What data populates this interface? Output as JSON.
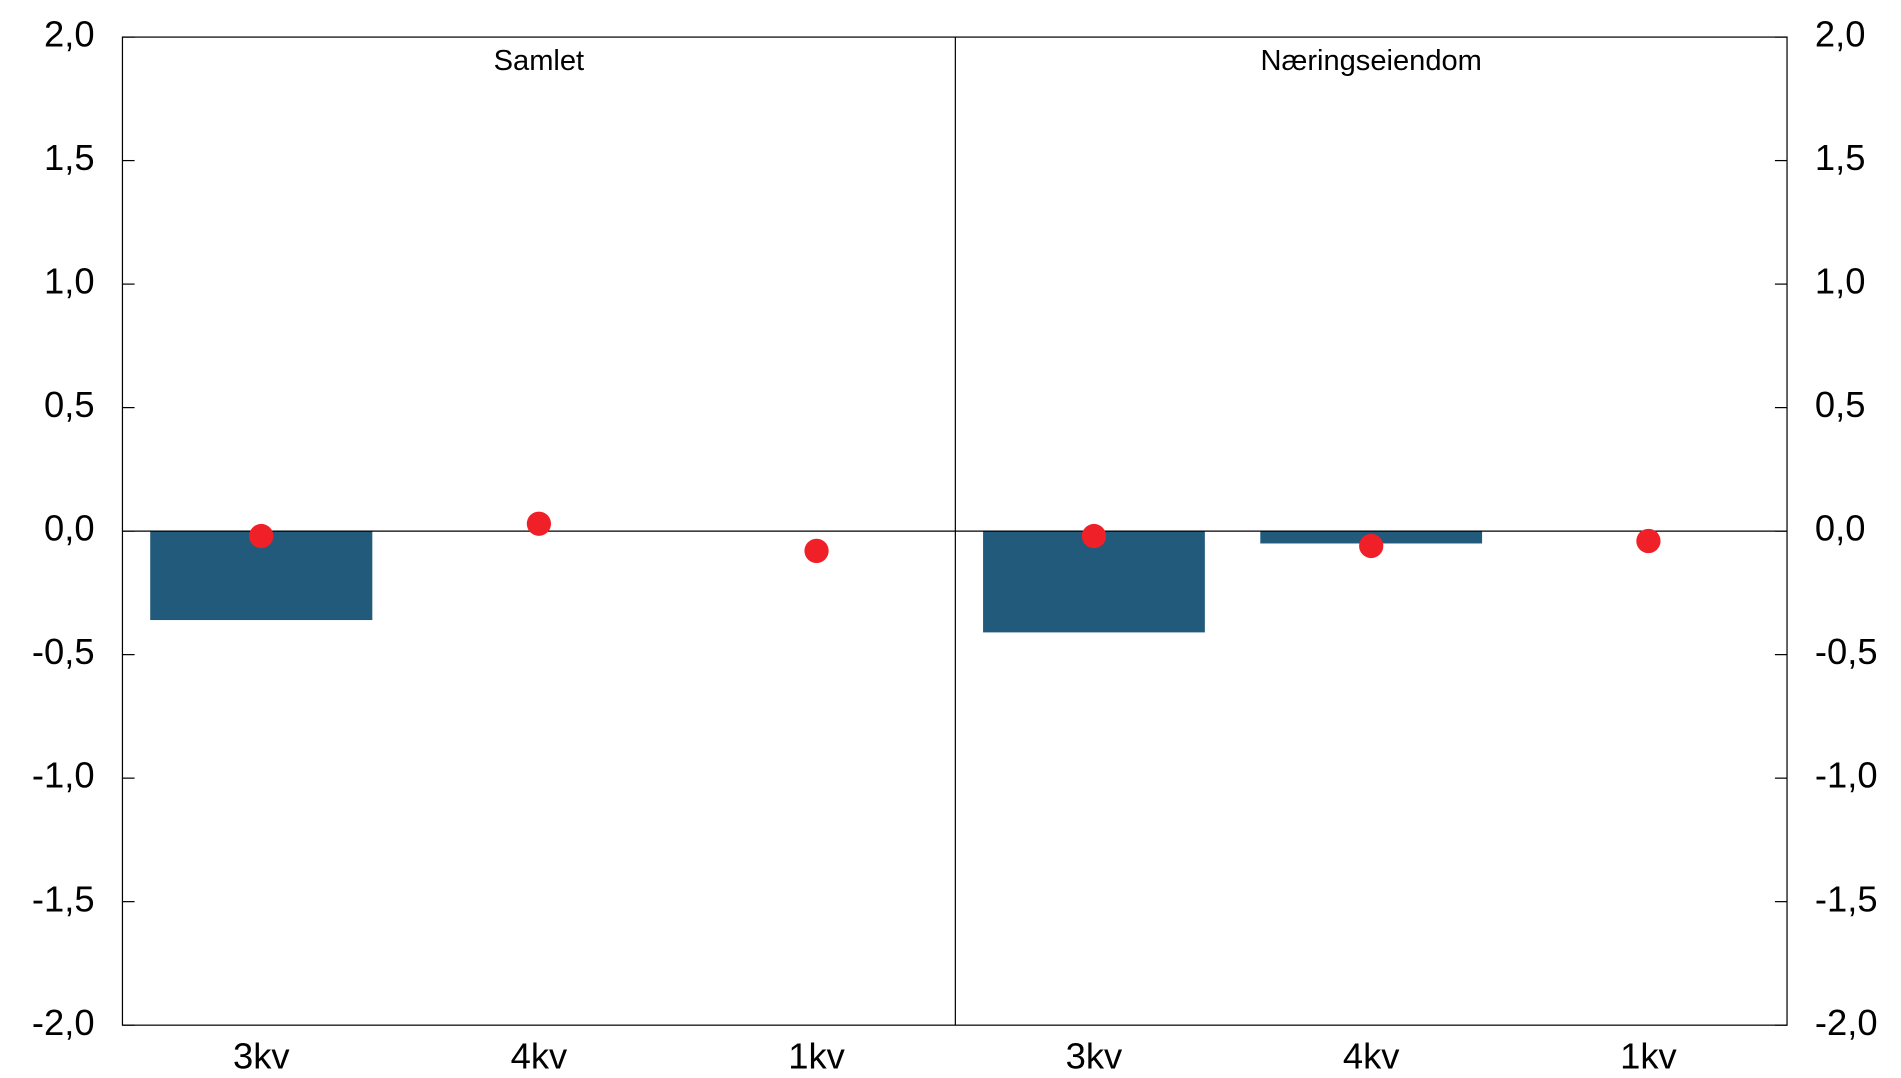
{
  "chart_data": [
    {
      "type": "bar",
      "title": "Samlet",
      "categories": [
        "3kv",
        "4kv",
        "1kv"
      ],
      "series": [
        {
          "type": "bar",
          "color": "#215a7a",
          "values": [
            -0.36,
            null,
            null
          ]
        },
        {
          "type": "scatter",
          "color": "#f02028",
          "values": [
            -0.02,
            0.03,
            -0.08
          ]
        }
      ],
      "ylim": [
        -2,
        2
      ],
      "yticks": [
        {
          "value": -2,
          "label": "-2,0"
        },
        {
          "value": -1.5,
          "label": "-1,5"
        },
        {
          "value": -1,
          "label": "-1,0"
        },
        {
          "value": -0.5,
          "label": "-0,5"
        },
        {
          "value": 0,
          "label": "0,0"
        },
        {
          "value": 0.5,
          "label": "0,5"
        },
        {
          "value": 1,
          "label": "1,0"
        },
        {
          "value": 1.5,
          "label": "1,5"
        },
        {
          "value": 2,
          "label": "2,0"
        }
      ]
    },
    {
      "type": "bar",
      "title": "Næringseiendom",
      "categories": [
        "3kv",
        "4kv",
        "1kv"
      ],
      "series": [
        {
          "type": "bar",
          "color": "#215a7a",
          "values": [
            -0.41,
            -0.05,
            null
          ]
        },
        {
          "type": "scatter",
          "color": "#f02028",
          "values": [
            -0.02,
            -0.06,
            -0.04
          ]
        }
      ],
      "ylim": [
        -2,
        2
      ],
      "yticks": [
        {
          "value": -2,
          "label": "-2,0"
        },
        {
          "value": -1.5,
          "label": "-1,5"
        },
        {
          "value": -1,
          "label": "-1,0"
        },
        {
          "value": -0.5,
          "label": "-0,5"
        },
        {
          "value": 0,
          "label": "0,0"
        },
        {
          "value": 0.5,
          "label": "0,5"
        },
        {
          "value": 1,
          "label": "1,0"
        },
        {
          "value": 1.5,
          "label": "1,5"
        },
        {
          "value": 2,
          "label": "2,0"
        }
      ]
    }
  ]
}
